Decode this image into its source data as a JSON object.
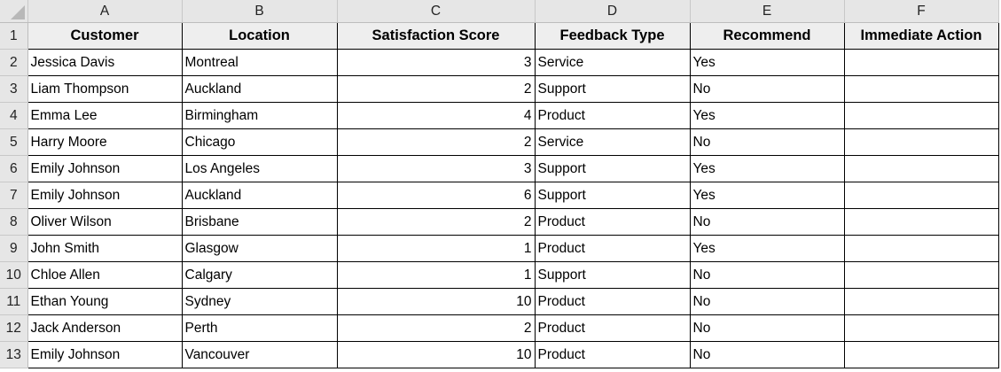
{
  "columns": [
    "A",
    "B",
    "C",
    "D",
    "E",
    "F"
  ],
  "headers": [
    "Customer",
    "Location",
    "Satisfaction Score",
    "Feedback Type",
    "Recommend",
    "Immediate Action"
  ],
  "rows": [
    [
      "Jessica Davis",
      "Montreal",
      "3",
      "Service",
      "Yes",
      ""
    ],
    [
      "Liam Thompson",
      "Auckland",
      "2",
      "Support",
      "No",
      ""
    ],
    [
      "Emma Lee",
      "Birmingham",
      "4",
      "Product",
      "Yes",
      ""
    ],
    [
      "Harry Moore",
      "Chicago",
      "2",
      "Service",
      "No",
      ""
    ],
    [
      "Emily Johnson",
      "Los Angeles",
      "3",
      "Support",
      "Yes",
      ""
    ],
    [
      "Emily Johnson",
      "Auckland",
      "6",
      "Support",
      "Yes",
      ""
    ],
    [
      "Oliver Wilson",
      "Brisbane",
      "2",
      "Product",
      "No",
      ""
    ],
    [
      "John Smith",
      "Glasgow",
      "1",
      "Product",
      "Yes",
      ""
    ],
    [
      "Chloe Allen",
      "Calgary",
      "1",
      "Support",
      "No",
      ""
    ],
    [
      "Ethan Young",
      "Sydney",
      "10",
      "Product",
      "No",
      ""
    ],
    [
      "Jack Anderson",
      "Perth",
      "2",
      "Product",
      "No",
      ""
    ],
    [
      "Emily Johnson",
      "Vancouver",
      "10",
      "Product",
      "No",
      ""
    ]
  ]
}
